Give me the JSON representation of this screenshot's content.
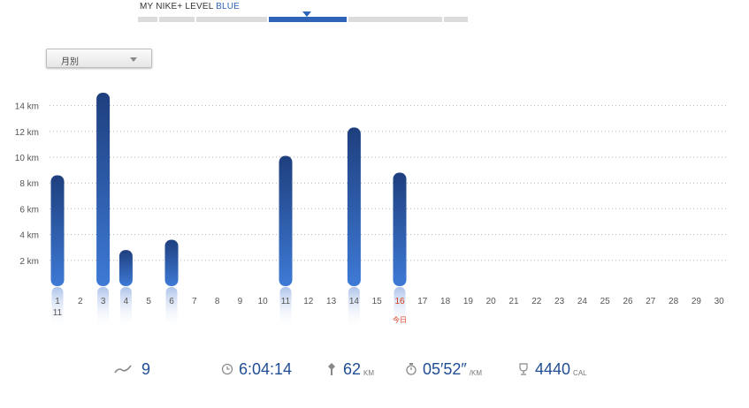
{
  "level": {
    "prefix": "MY NIKE+ LEVEL",
    "name": "BLUE",
    "accent": "#2e63b8",
    "progress": 0.51
  },
  "period_select": {
    "selected": "月別"
  },
  "chart_data": {
    "type": "bar",
    "ylabel": "",
    "yunit": "km",
    "ylim": [
      0,
      16
    ],
    "yticks": [
      2,
      4,
      6,
      8,
      10,
      12,
      14
    ],
    "ytick_labels": [
      "2 km",
      "4 km",
      "6 km",
      "8 km",
      "10 km",
      "12 km",
      "14 km"
    ],
    "grid": true,
    "categories": [
      "1",
      "2",
      "3",
      "4",
      "5",
      "6",
      "7",
      "8",
      "9",
      "10",
      "11",
      "12",
      "13",
      "14",
      "15",
      "16",
      "17",
      "18",
      "19",
      "20",
      "21",
      "22",
      "23",
      "24",
      "25",
      "26",
      "27",
      "28",
      "29",
      "30"
    ],
    "values": [
      8.6,
      0,
      15.0,
      2.8,
      0,
      3.6,
      0,
      0,
      0,
      0,
      10.1,
      0,
      0,
      12.3,
      0,
      8.8,
      0,
      0,
      0,
      0,
      0,
      0,
      0,
      0,
      0,
      0,
      0,
      0,
      0,
      0
    ],
    "first_day_sublabel": "11",
    "today_index": 15,
    "today_label": "今日",
    "bar_color_top": "#1e3f7e",
    "bar_color_bottom": "#3e7ad6",
    "today_color": "#d9401f"
  },
  "stats": {
    "runs": "9",
    "duration": "6:04:14",
    "distance": "62",
    "distance_unit": "KM",
    "pace": "05′52″",
    "pace_unit": "/KM",
    "calories": "4440",
    "calories_unit": "CAL"
  }
}
